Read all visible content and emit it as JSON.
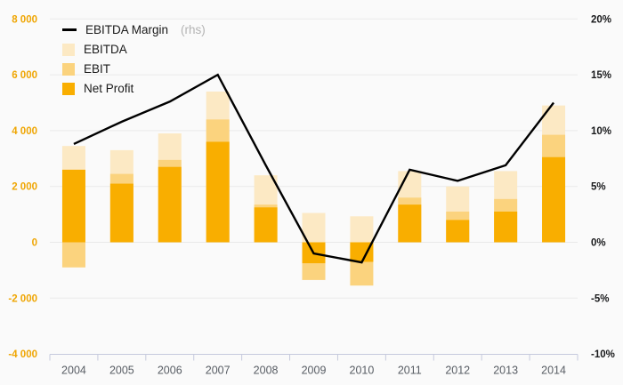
{
  "chart_data": {
    "type": "bar-line-combo",
    "categories": [
      "2004",
      "2005",
      "2006",
      "2007",
      "2008",
      "2009",
      "2010",
      "2011",
      "2012",
      "2013",
      "2014"
    ],
    "series": [
      {
        "name": "EBITDA",
        "type": "bar",
        "color": "#fce9c4",
        "values": [
          3450,
          3300,
          3900,
          5400,
          2400,
          1050,
          930,
          2550,
          2000,
          2550,
          4900
        ]
      },
      {
        "name": "EBIT",
        "type": "bar",
        "color": "#fbd37e",
        "values": [
          -900,
          2450,
          2950,
          4400,
          1350,
          -1350,
          -1550,
          1600,
          1100,
          1550,
          3850
        ]
      },
      {
        "name": "Net Profit",
        "type": "bar",
        "color": "#f9ae00",
        "values": [
          2600,
          2100,
          2700,
          3600,
          1250,
          -750,
          -700,
          1350,
          800,
          1100,
          3050
        ]
      },
      {
        "name": "EBITDA Margin",
        "type": "line",
        "axis": "right",
        "color": "#000000",
        "values": [
          8.8,
          10.8,
          12.6,
          15.0,
          6.9,
          -1.0,
          -1.8,
          6.5,
          5.5,
          6.9,
          12.5
        ]
      }
    ],
    "left_axis": {
      "tick_labels": [
        "8 000",
        "6 000",
        "4 000",
        "2 000",
        "0",
        "-2 000",
        "-4 000"
      ],
      "tick_values": [
        8000,
        6000,
        4000,
        2000,
        0,
        -2000,
        -4000
      ],
      "range": [
        -4000,
        8000
      ],
      "label_color": "#efa604"
    },
    "right_axis": {
      "tick_labels": [
        "20%",
        "15%",
        "10%",
        "5%",
        "0%",
        "-5%",
        "-10%"
      ],
      "tick_values": [
        20,
        15,
        10,
        5,
        0,
        -5,
        -10
      ],
      "range": [
        -10,
        20
      ],
      "label_color": "#17181a"
    },
    "legend": [
      {
        "label": "EBITDA Margin",
        "suffix": "(rhs)",
        "swatch": "line",
        "color": "#000000"
      },
      {
        "label": "EBITDA",
        "suffix": "",
        "swatch": "square",
        "color": "#fce9c4"
      },
      {
        "label": "EBIT",
        "suffix": "",
        "swatch": "square",
        "color": "#fbd37e"
      },
      {
        "label": "Net Profit",
        "suffix": "",
        "swatch": "square",
        "color": "#f9ae00"
      }
    ],
    "legend_position": "top-left",
    "grid": true,
    "colors": {
      "background": "#fafafa",
      "gridline": "#e9e9e9",
      "axis_line": "#c6cadd",
      "year_label": "#585d64"
    }
  }
}
